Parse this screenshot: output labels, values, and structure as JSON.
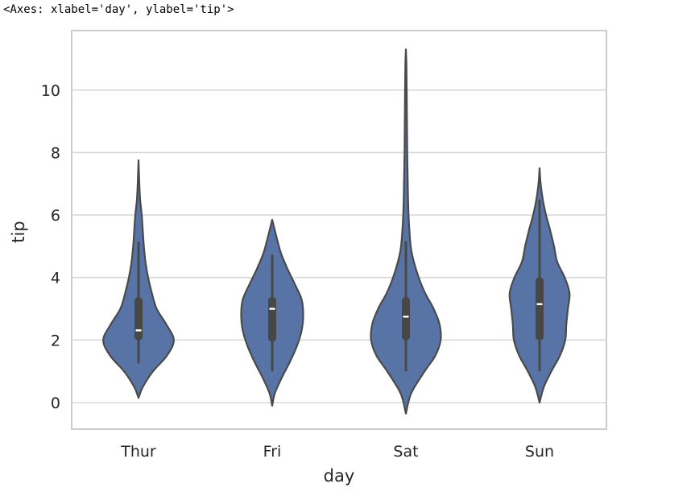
{
  "repr_text": "<Axes: xlabel='day', ylabel='tip'>",
  "chart_data": {
    "type": "violin",
    "xlabel": "day",
    "ylabel": "tip",
    "categories": [
      "Thur",
      "Fri",
      "Sat",
      "Sun"
    ],
    "ylim": [
      -0.85,
      11.9
    ],
    "yticks": [
      0,
      2,
      4,
      6,
      8,
      10
    ],
    "grid": true,
    "color": "#5874a6",
    "edge_color": "#4a4a4a",
    "violins": [
      {
        "category": "Thur",
        "extent": [
          0.15,
          7.75
        ],
        "quartiles": [
          2.0,
          2.31,
          3.36
        ],
        "whiskers": [
          1.25,
          5.15
        ],
        "density": [
          [
            0.15,
            0.0
          ],
          [
            0.5,
            0.08
          ],
          [
            1.0,
            0.27
          ],
          [
            1.5,
            0.53
          ],
          [
            2.0,
            0.66
          ],
          [
            2.5,
            0.52
          ],
          [
            3.0,
            0.34
          ],
          [
            3.5,
            0.25
          ],
          [
            4.0,
            0.18
          ],
          [
            4.5,
            0.13
          ],
          [
            5.0,
            0.1
          ],
          [
            5.5,
            0.08
          ],
          [
            6.0,
            0.06
          ],
          [
            6.5,
            0.03
          ],
          [
            7.0,
            0.015
          ],
          [
            7.75,
            0.0
          ]
        ]
      },
      {
        "category": "Fri",
        "extent": [
          -0.1,
          5.85
        ],
        "quartiles": [
          1.96,
          3.0,
          3.37
        ],
        "whiskers": [
          1.0,
          4.73
        ],
        "density": [
          [
            -0.1,
            0.0
          ],
          [
            0.3,
            0.05
          ],
          [
            0.8,
            0.18
          ],
          [
            1.3,
            0.33
          ],
          [
            1.8,
            0.46
          ],
          [
            2.3,
            0.55
          ],
          [
            2.8,
            0.58
          ],
          [
            3.3,
            0.55
          ],
          [
            3.8,
            0.42
          ],
          [
            4.3,
            0.28
          ],
          [
            4.8,
            0.16
          ],
          [
            5.3,
            0.08
          ],
          [
            5.85,
            0.0
          ]
        ]
      },
      {
        "category": "Sat",
        "extent": [
          -0.35,
          11.3
        ],
        "quartiles": [
          2.0,
          2.75,
          3.37
        ],
        "whiskers": [
          1.0,
          5.16
        ],
        "density": [
          [
            -0.35,
            0.0
          ],
          [
            0.3,
            0.1
          ],
          [
            1.0,
            0.35
          ],
          [
            1.5,
            0.55
          ],
          [
            2.0,
            0.65
          ],
          [
            2.5,
            0.63
          ],
          [
            3.0,
            0.52
          ],
          [
            3.5,
            0.36
          ],
          [
            4.0,
            0.24
          ],
          [
            4.5,
            0.15
          ],
          [
            5.0,
            0.09
          ],
          [
            6.0,
            0.05
          ],
          [
            7.0,
            0.035
          ],
          [
            8.0,
            0.025
          ],
          [
            9.0,
            0.02
          ],
          [
            10.0,
            0.015
          ],
          [
            10.8,
            0.01
          ],
          [
            11.3,
            0.0
          ]
        ]
      },
      {
        "category": "Sun",
        "extent": [
          0.0,
          7.5
        ],
        "quartiles": [
          2.0,
          3.15,
          4.0
        ],
        "whiskers": [
          1.01,
          6.5
        ],
        "density": [
          [
            0.0,
            0.0
          ],
          [
            0.5,
            0.08
          ],
          [
            1.0,
            0.22
          ],
          [
            1.5,
            0.38
          ],
          [
            2.0,
            0.48
          ],
          [
            2.5,
            0.5
          ],
          [
            3.0,
            0.53
          ],
          [
            3.5,
            0.56
          ],
          [
            4.0,
            0.47
          ],
          [
            4.5,
            0.33
          ],
          [
            5.0,
            0.27
          ],
          [
            5.5,
            0.2
          ],
          [
            6.0,
            0.12
          ],
          [
            6.5,
            0.06
          ],
          [
            7.0,
            0.02
          ],
          [
            7.5,
            0.0
          ]
        ]
      }
    ]
  }
}
